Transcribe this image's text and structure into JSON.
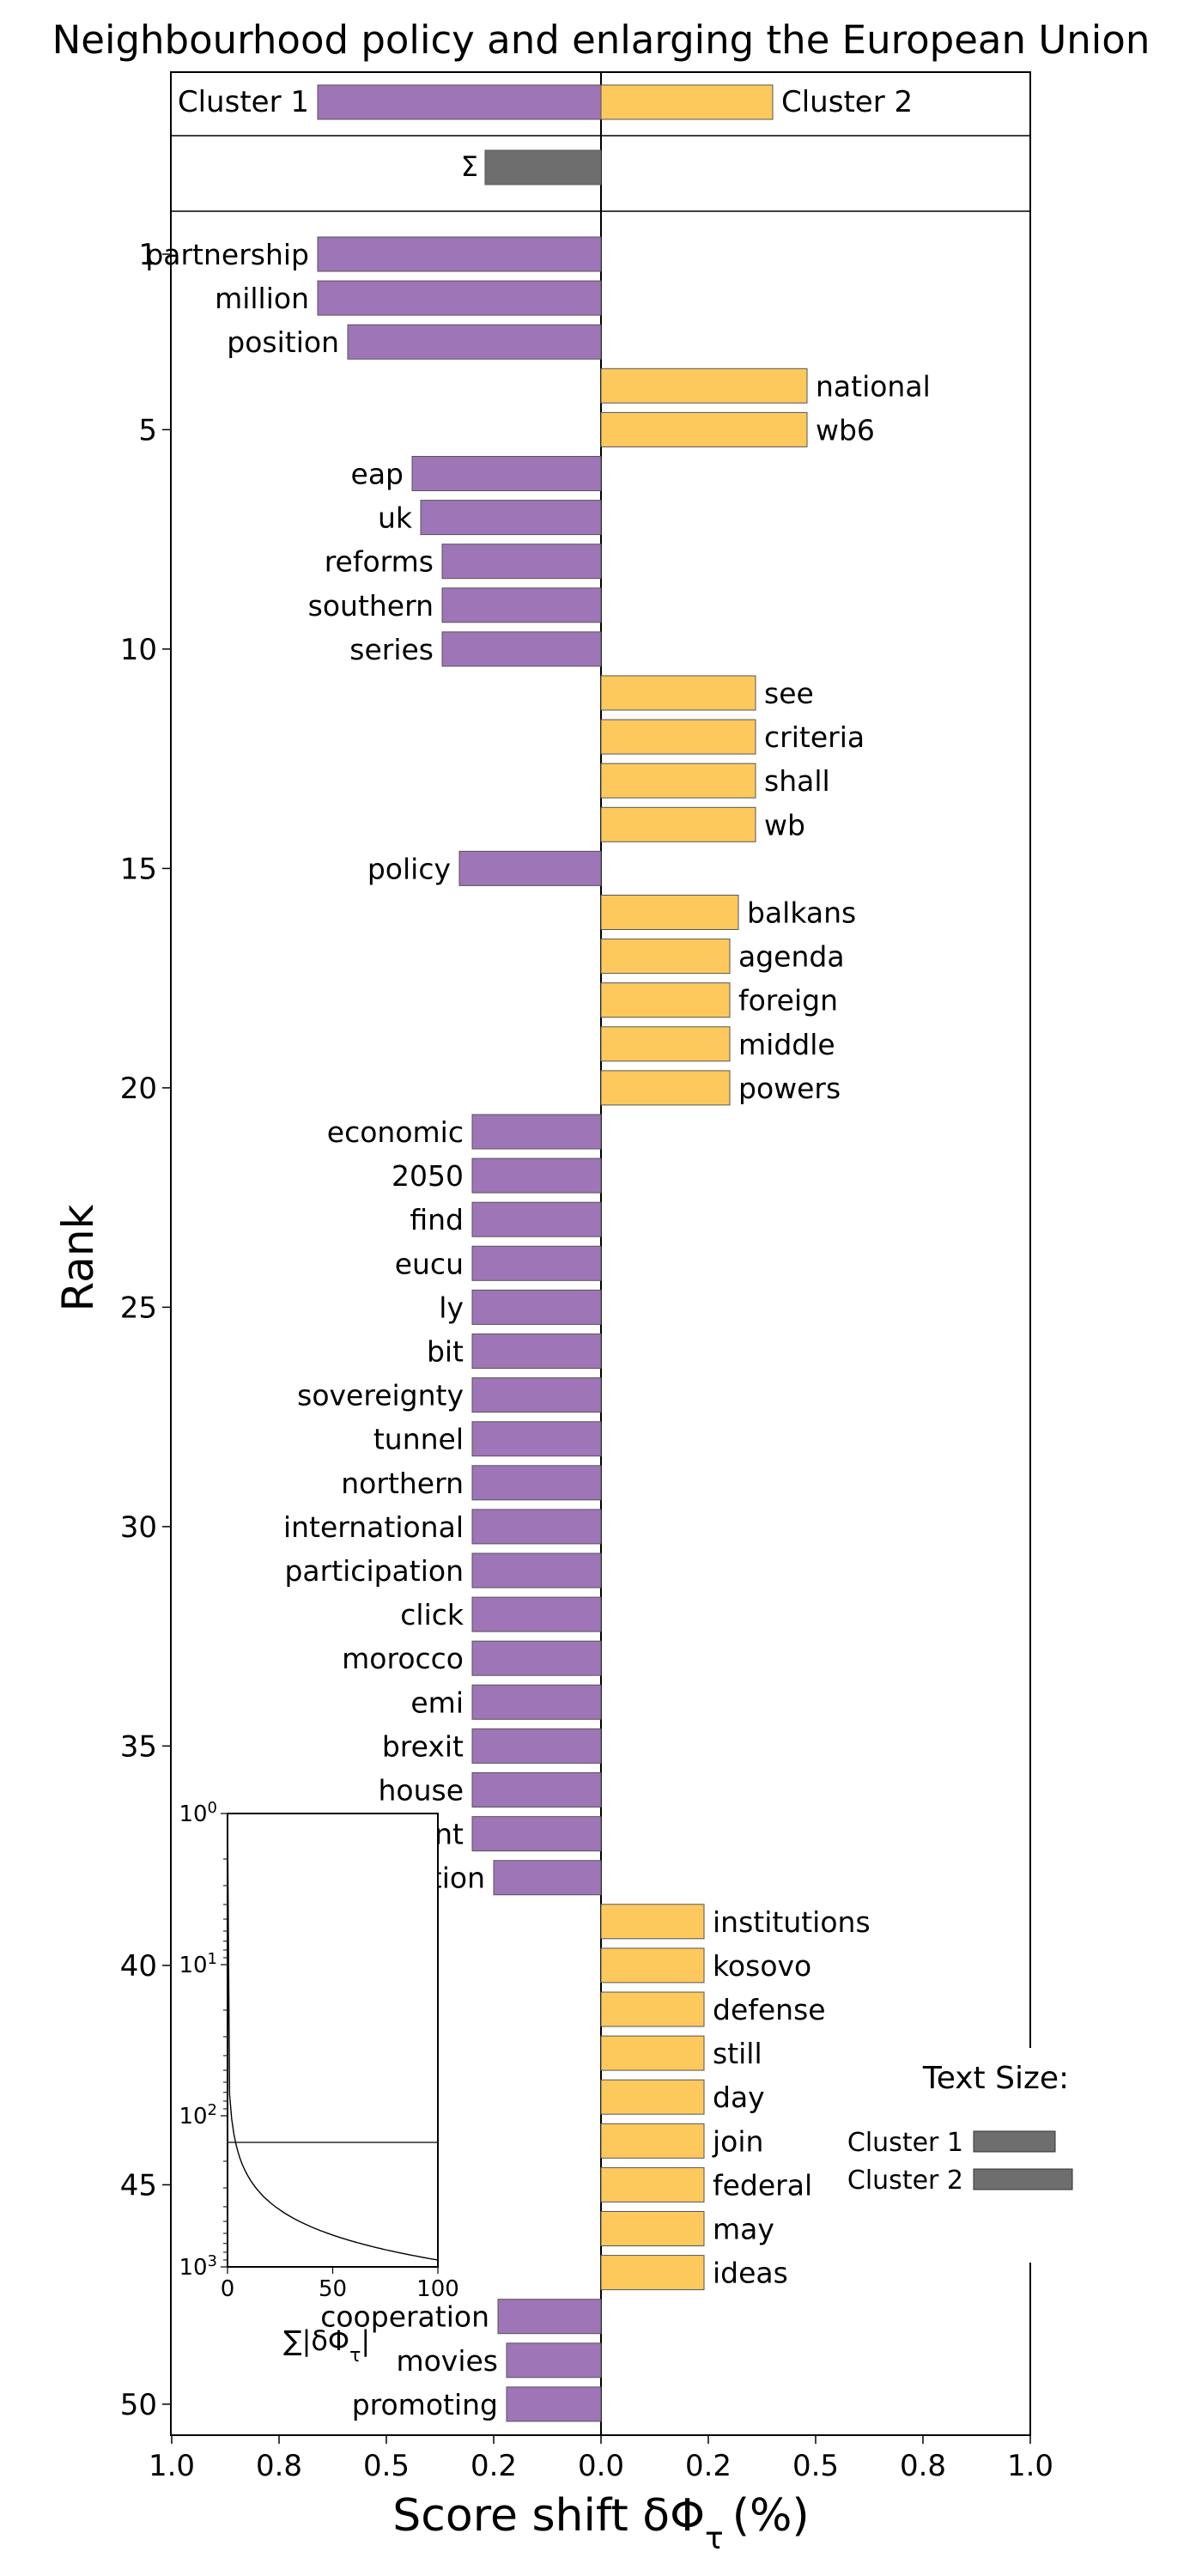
{
  "chart_data": {
    "type": "bar",
    "orientation": "horizontal-diverging",
    "title": "Neighbourhood policy and enlarging the European Union",
    "xlabel": "Score shift δΦ",
    "xlabel_subscript": "τ",
    "xlabel_unit": "(%)",
    "ylabel": "Rank",
    "xlim": [
      -1.0,
      1.0
    ],
    "x_tick_values": [
      -1.0,
      -0.75,
      -0.5,
      -0.25,
      0,
      0.25,
      0.5,
      0.75,
      1.0
    ],
    "x_tick_labels": [
      "1.0",
      "0.8",
      "0.5",
      "0.2",
      "0.0",
      "0.2",
      "0.5",
      "0.8",
      "1.0"
    ],
    "y_tick_values": [
      1,
      5,
      10,
      15,
      20,
      25,
      30,
      35,
      40,
      45,
      50
    ],
    "y_tick_labels": [
      "1",
      "5",
      "10",
      "15",
      "20",
      "25",
      "30",
      "35",
      "40",
      "45",
      "50"
    ],
    "colors": {
      "cluster1": "#9e75b7",
      "cluster2": "#fdc95c",
      "sum": "#6e6e6e"
    },
    "header": {
      "cluster1_label": "Cluster 1",
      "cluster2_label": "Cluster 2",
      "cluster1_value": -0.66,
      "cluster2_value": 0.4,
      "sum_label": "Σ",
      "sum_value": -0.27
    },
    "words": [
      "partnership",
      "million",
      "position",
      "national",
      "wb6",
      "eap",
      "uk",
      "reforms",
      "southern",
      "series",
      "see",
      "criteria",
      "shall",
      "wb",
      "policy",
      "balkans",
      "agenda",
      "foreign",
      "middle",
      "powers",
      "economic",
      "2050",
      "find",
      "eucu",
      "ly",
      "bit",
      "sovereignty",
      "tunnel",
      "northern",
      "international",
      "participation",
      "click",
      "morocco",
      "emi",
      "brexit",
      "house",
      "movement",
      "population",
      "institutions",
      "kosovo",
      "defense",
      "still",
      "day",
      "join",
      "federal",
      "may",
      "ideas",
      "cooperation",
      "movies",
      "promoting"
    ],
    "values": [
      -0.66,
      -0.66,
      -0.59,
      0.48,
      0.48,
      -0.44,
      -0.42,
      -0.37,
      -0.37,
      -0.37,
      0.36,
      0.36,
      0.36,
      0.36,
      -0.33,
      0.32,
      0.3,
      0.3,
      0.3,
      0.3,
      -0.3,
      -0.3,
      -0.3,
      -0.3,
      -0.3,
      -0.3,
      -0.3,
      -0.3,
      -0.3,
      -0.3,
      -0.3,
      -0.3,
      -0.3,
      -0.3,
      -0.3,
      -0.3,
      -0.3,
      -0.25,
      0.24,
      0.24,
      0.24,
      0.24,
      0.24,
      0.24,
      0.24,
      0.24,
      0.24,
      -0.24,
      -0.22,
      -0.22
    ],
    "legend": {
      "title": "Text Size:",
      "items": [
        {
          "label": "Cluster 1",
          "value": 0.19
        },
        {
          "label": "Cluster 2",
          "value": 0.23
        }
      ],
      "position": "right"
    },
    "inset": {
      "ylabel": "∑|δΦ",
      "ylabel_subscript": "τ",
      "ylabel_close": "|",
      "x_tick_labels": [
        "0",
        "50",
        "100"
      ],
      "y_tick_labels": [
        "10",
        "10",
        "10",
        "10"
      ],
      "y_tick_exponents": [
        "0",
        "1",
        "2",
        "3"
      ],
      "reference_line_rank": 150
    }
  }
}
